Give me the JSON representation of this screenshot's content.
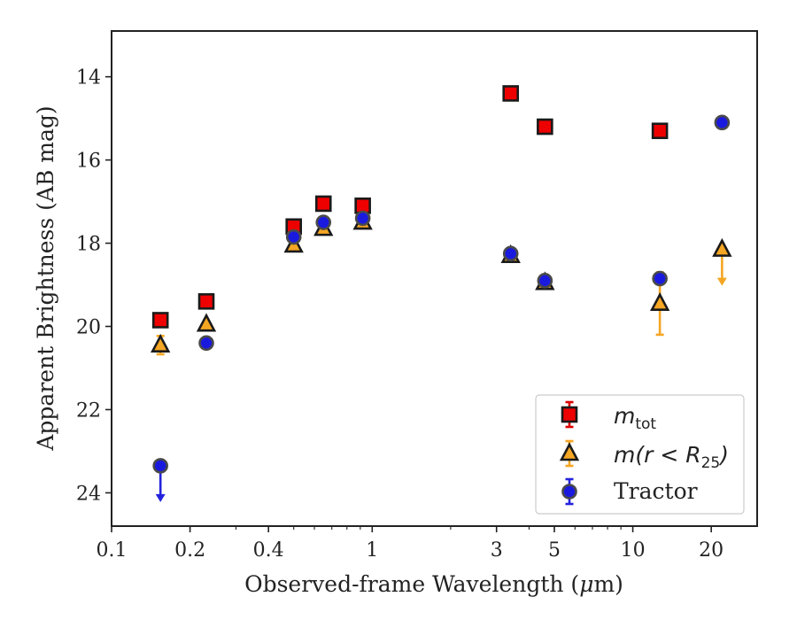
{
  "chart_data": {
    "type": "scatter",
    "xlabel_prefix": "Observed-frame Wavelength (",
    "xlabel_unit_mu": "μ",
    "xlabel_suffix": "m)",
    "ylabel": "Apparent Brightness (AB mag)",
    "xscale": "log",
    "xlim": [
      0.1,
      30
    ],
    "ylim": [
      24.8,
      12.9
    ],
    "y_inverted": true,
    "grid": false,
    "legend_position": "bottom-right",
    "x_ticks": [
      {
        "value": 0.1,
        "label": "0.1"
      },
      {
        "value": 0.2,
        "label": "0.2"
      },
      {
        "value": 0.4,
        "label": "0.4"
      },
      {
        "value": 1,
        "label": "1"
      },
      {
        "value": 3,
        "label": "3"
      },
      {
        "value": 5,
        "label": "5"
      },
      {
        "value": 10,
        "label": "10"
      },
      {
        "value": 20,
        "label": "20"
      }
    ],
    "y_ticks": [
      {
        "value": 14,
        "label": "14"
      },
      {
        "value": 16,
        "label": "16"
      },
      {
        "value": 18,
        "label": "18"
      },
      {
        "value": 20,
        "label": "20"
      },
      {
        "value": 22,
        "label": "22"
      },
      {
        "value": 24,
        "label": "24"
      }
    ],
    "series": [
      {
        "key": "mtot",
        "legend_main": "m",
        "legend_sub": "tot",
        "marker": "square",
        "face_color": "#ee0000",
        "error_color": "#dd0000",
        "points": [
          {
            "x": 0.154,
            "y": 19.85
          },
          {
            "x": 0.231,
            "y": 19.4
          },
          {
            "x": 0.5,
            "y": 17.6
          },
          {
            "x": 0.65,
            "y": 17.05
          },
          {
            "x": 0.92,
            "y": 17.1
          },
          {
            "x": 3.4,
            "y": 14.4
          },
          {
            "x": 4.6,
            "y": 15.2
          },
          {
            "x": 12.7,
            "y": 15.3
          }
        ]
      },
      {
        "key": "mr25",
        "legend_main": "m(r < R",
        "legend_sub": "25",
        "legend_close": ")",
        "marker": "triangle",
        "face_color": "#f5a623",
        "error_color": "#f5a623",
        "points": [
          {
            "x": 0.154,
            "y": 20.45,
            "yerr": 0.22
          },
          {
            "x": 0.231,
            "y": 19.95
          },
          {
            "x": 0.5,
            "y": 18.05
          },
          {
            "x": 0.65,
            "y": 17.65
          },
          {
            "x": 0.92,
            "y": 17.5
          },
          {
            "x": 3.4,
            "y": 18.3
          },
          {
            "x": 4.6,
            "y": 18.95
          },
          {
            "x": 12.7,
            "y": 19.45,
            "yerr": 0.75
          },
          {
            "x": 22.0,
            "y": 18.15,
            "upper_limit": true
          }
        ]
      },
      {
        "key": "tractor",
        "name": "Tractor",
        "marker": "circle",
        "face_color": "#1a1adf",
        "error_color": "#2222dd",
        "points": [
          {
            "x": 0.154,
            "y": 23.35,
            "upper_limit": true
          },
          {
            "x": 0.231,
            "y": 20.4
          },
          {
            "x": 0.5,
            "y": 17.85
          },
          {
            "x": 0.65,
            "y": 17.5
          },
          {
            "x": 0.92,
            "y": 17.4
          },
          {
            "x": 3.4,
            "y": 18.25
          },
          {
            "x": 4.6,
            "y": 18.9
          },
          {
            "x": 12.7,
            "y": 18.85
          },
          {
            "x": 22.0,
            "y": 15.1
          }
        ]
      }
    ]
  }
}
